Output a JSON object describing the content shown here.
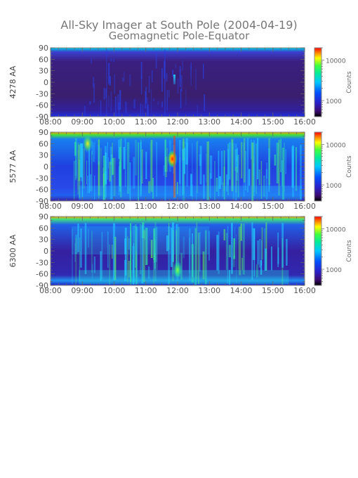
{
  "title": "All-Sky Imager at South Pole (2004-04-19)",
  "subtitle": "Geomagnetic Pole-Equator",
  "chart_data": [
    {
      "type": "heatmap",
      "ylabel": "4278 AA",
      "x_ticks": [
        "08:00",
        "09:00",
        "10:00",
        "11:00",
        "12:00",
        "13:00",
        "14:00",
        "15:00",
        "16:00"
      ],
      "y_ticks": [
        90,
        60,
        30,
        0,
        -30,
        -60,
        -90
      ],
      "xlim": [
        "08:00",
        "16:00"
      ],
      "ylim": [
        -90,
        90
      ],
      "colorbar": {
        "label": "Counts",
        "scale": "log",
        "ticks": [
          10000,
          1000
        ],
        "tick_labels": [
          "10000",
          "1000"
        ],
        "range": [
          400,
          20000
        ]
      },
      "colors": {
        "background": "#3a1f6e",
        "edge": "#1f1fd0"
      },
      "level": "low",
      "bright_spots": [
        {
          "time": "11:55",
          "lat": 10,
          "intensity": "cyan"
        }
      ]
    },
    {
      "type": "heatmap",
      "ylabel": "5577 AA",
      "x_ticks": [
        "08:00",
        "09:00",
        "10:00",
        "11:00",
        "12:00",
        "13:00",
        "14:00",
        "15:00",
        "16:00"
      ],
      "y_ticks": [
        90,
        60,
        30,
        0,
        -30,
        -60,
        -90
      ],
      "xlim": [
        "08:00",
        "16:00"
      ],
      "ylim": [
        -90,
        90
      ],
      "colorbar": {
        "label": "Counts",
        "scale": "log",
        "ticks": [
          10000,
          1000
        ],
        "tick_labels": [
          "10000",
          "1000"
        ],
        "range": [
          400,
          20000
        ]
      },
      "colors": {
        "background": "#2040e0",
        "edge": "#20e070"
      },
      "level": "medium",
      "bright_spots": [
        {
          "time": "11:50",
          "lat": 20,
          "intensity": "red"
        },
        {
          "time": "09:10",
          "lat": 60,
          "intensity": "yellow"
        }
      ]
    },
    {
      "type": "heatmap",
      "ylabel": "6300 AA",
      "x_ticks": [
        "08:00",
        "09:00",
        "10:00",
        "11:00",
        "12:00",
        "13:00",
        "14:00",
        "15:00",
        "16:00"
      ],
      "y_ticks": [
        90,
        60,
        30,
        0,
        -30,
        -60,
        -90
      ],
      "xlim": [
        "08:00",
        "16:00"
      ],
      "ylim": [
        -90,
        90
      ],
      "colorbar": {
        "label": "Counts",
        "scale": "log",
        "ticks": [
          10000,
          1000
        ],
        "tick_labels": [
          "10000",
          "1000"
        ],
        "range": [
          400,
          20000
        ]
      },
      "colors": {
        "background": "#3520a0",
        "edge": "#20e0c0"
      },
      "level": "medium",
      "bright_spots": [
        {
          "time": "12:00",
          "lat": -50,
          "intensity": "green"
        }
      ]
    }
  ]
}
